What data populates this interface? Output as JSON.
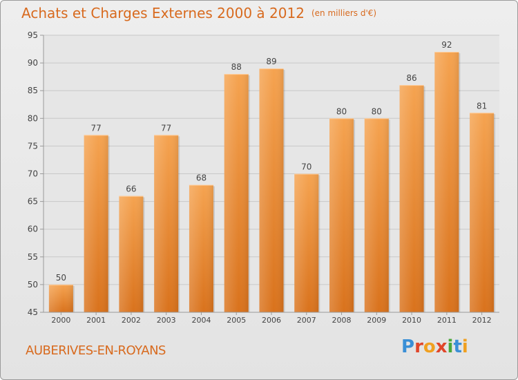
{
  "header": {
    "title": "Achats et Charges Externes 2000 à 2012",
    "unit": "(en milliers d'€)"
  },
  "location": "AUBERIVES-EN-ROYANS",
  "logo": {
    "text": "Proxiti",
    "letters": [
      {
        "ch": "P",
        "color": "#3a8fd6"
      },
      {
        "ch": "r",
        "color": "#e0462a"
      },
      {
        "ch": "o",
        "color": "#f0a020"
      },
      {
        "ch": "x",
        "color": "#e0462a"
      },
      {
        "ch": "i",
        "color": "#4aa83a"
      },
      {
        "ch": "t",
        "color": "#3a8fd6"
      },
      {
        "ch": "i",
        "color": "#f0a020"
      }
    ]
  },
  "chart_data": {
    "type": "bar",
    "categories": [
      "2000",
      "2001",
      "2002",
      "2003",
      "2004",
      "2005",
      "2006",
      "2007",
      "2008",
      "2009",
      "2010",
      "2011",
      "2012"
    ],
    "values": [
      50,
      77,
      66,
      77,
      68,
      88,
      89,
      70,
      80,
      80,
      86,
      92,
      81
    ],
    "ylim": [
      45,
      95
    ],
    "yticks": [
      45,
      50,
      55,
      60,
      65,
      70,
      75,
      80,
      85,
      90,
      95
    ],
    "grid": true,
    "bar_color": "#e8862e"
  }
}
